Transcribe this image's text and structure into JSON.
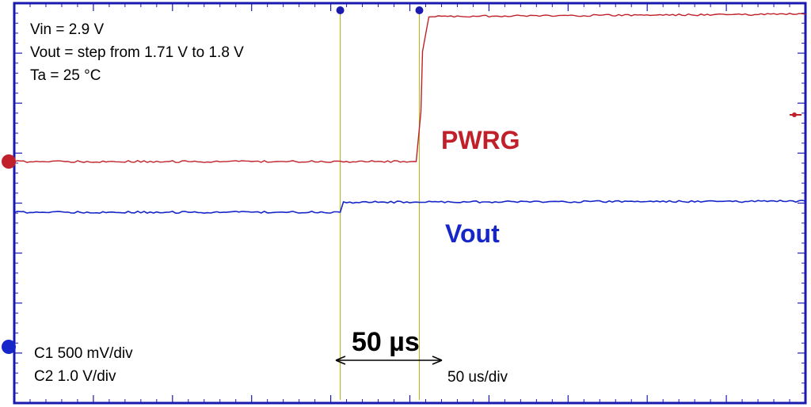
{
  "conditions": {
    "vin": "Vin = 2.9 V",
    "vout": "Vout = step from 1.71 V to 1.8 V",
    "ta": "Ta = 25 °C"
  },
  "scales": {
    "c1": "C1 500 mV/div",
    "c2": "C2 1.0 V/div",
    "time": "50 us/div"
  },
  "delta_label": "50 µs",
  "colors": {
    "pwrg": "#c0202a",
    "vout": "#1626c8",
    "border": "#1a1ab0",
    "grid": "#1a1ab0",
    "cursor": "#b8b830"
  },
  "chart_data": {
    "type": "line",
    "title": "",
    "xlabel": "",
    "ylabel": "",
    "x_unit": "us",
    "x_divisions": 10,
    "x_scale_per_div": 50,
    "xlim": [
      0,
      500
    ],
    "grid": true,
    "series": [
      {
        "name": "PWRG",
        "label": "PWRG",
        "color": "#c0202a",
        "x": [
          0,
          254,
          257,
          258,
          262,
          500
        ],
        "y_div": [
          0.0,
          0.0,
          1.0,
          2.2,
          2.9,
          2.95
        ]
      },
      {
        "name": "Vout",
        "label": "Vout",
        "color": "#1626c8",
        "x": [
          0,
          206,
          208,
          500
        ],
        "y_div": [
          0.0,
          0.0,
          0.2,
          0.22
        ]
      }
    ],
    "cursors_x": [
      206,
      256
    ],
    "cursor_delta": "50 µs"
  }
}
